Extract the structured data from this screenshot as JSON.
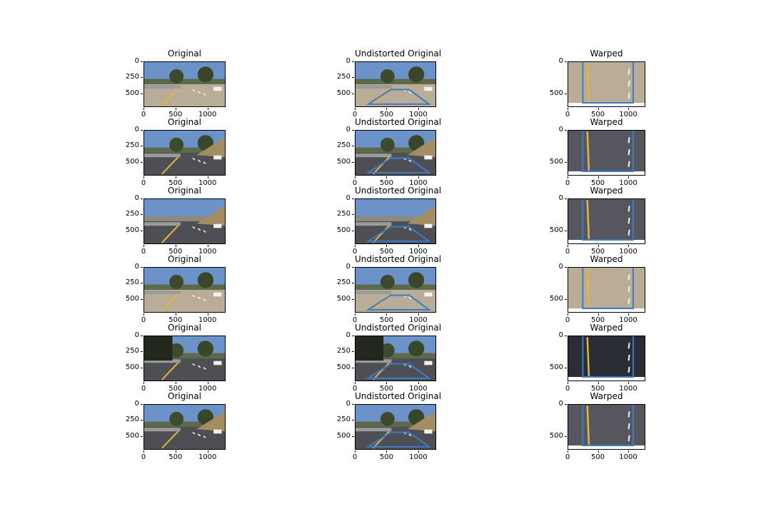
{
  "panels": [
    {
      "title": "Original",
      "kind": "original",
      "variant": "a",
      "yticks": [
        "0",
        "250",
        "500"
      ],
      "xticks": [
        "0",
        "500",
        "1000"
      ]
    },
    {
      "title": "Undistorted Original",
      "kind": "undistorted",
      "variant": "a",
      "yticks": [
        "0",
        "250",
        "500"
      ],
      "xticks": [
        "0",
        "500",
        "1000"
      ]
    },
    {
      "title": "Warped",
      "kind": "warped",
      "variant": "a",
      "yticks": [
        "0",
        "500"
      ],
      "xticks": [
        "0",
        "500",
        "1000"
      ]
    },
    {
      "title": "Original",
      "kind": "original",
      "variant": "b",
      "yticks": [
        "0",
        "250",
        "500"
      ],
      "xticks": [
        "0",
        "500",
        "1000"
      ]
    },
    {
      "title": "Undistorted Original",
      "kind": "undistorted",
      "variant": "b",
      "yticks": [
        "0",
        "250",
        "500"
      ],
      "xticks": [
        "0",
        "500",
        "1000"
      ]
    },
    {
      "title": "Warped",
      "kind": "warped",
      "variant": "b",
      "yticks": [
        "0",
        "500"
      ],
      "xticks": [
        "0",
        "500",
        "1000"
      ]
    },
    {
      "title": "Original",
      "kind": "original",
      "variant": "c",
      "yticks": [
        "0",
        "250",
        "500"
      ],
      "xticks": [
        "0",
        "500",
        "1000"
      ]
    },
    {
      "title": "Undistorted Original",
      "kind": "undistorted",
      "variant": "c",
      "yticks": [
        "0",
        "250",
        "500"
      ],
      "xticks": [
        "0",
        "500",
        "1000"
      ]
    },
    {
      "title": "Warped",
      "kind": "warped",
      "variant": "c",
      "yticks": [
        "0",
        "500"
      ],
      "xticks": [
        "0",
        "500",
        "1000"
      ]
    },
    {
      "title": "Original",
      "kind": "original",
      "variant": "a",
      "yticks": [
        "0",
        "250",
        "500"
      ],
      "xticks": [
        "0",
        "500",
        "1000"
      ]
    },
    {
      "title": "Undistorted Original",
      "kind": "undistorted",
      "variant": "a",
      "yticks": [
        "0",
        "250",
        "500"
      ],
      "xticks": [
        "0",
        "500",
        "1000"
      ]
    },
    {
      "title": "Warped",
      "kind": "warped",
      "variant": "a",
      "yticks": [
        "0",
        "500"
      ],
      "xticks": [
        "0",
        "500",
        "1000"
      ]
    },
    {
      "title": "Original",
      "kind": "original",
      "variant": "d",
      "yticks": [
        "0",
        "250",
        "500"
      ],
      "xticks": [
        "0",
        "500",
        "1000"
      ]
    },
    {
      "title": "Undistorted Original",
      "kind": "undistorted",
      "variant": "d",
      "yticks": [
        "0",
        "250",
        "500"
      ],
      "xticks": [
        "0",
        "500",
        "1000"
      ]
    },
    {
      "title": "Warped",
      "kind": "warped",
      "variant": "d",
      "yticks": [
        "0",
        "500"
      ],
      "xticks": [
        "0",
        "500",
        "1000"
      ]
    },
    {
      "title": "Original",
      "kind": "original",
      "variant": "b",
      "yticks": [
        "0",
        "250",
        "500"
      ],
      "xticks": [
        "0",
        "500",
        "1000"
      ]
    },
    {
      "title": "Undistorted Original",
      "kind": "undistorted",
      "variant": "b",
      "yticks": [
        "0",
        "250",
        "500"
      ],
      "xticks": [
        "0",
        "500",
        "1000"
      ]
    },
    {
      "title": "Warped",
      "kind": "warped",
      "variant": "b",
      "yticks": [
        "0",
        "500"
      ],
      "xticks": [
        "0",
        "500",
        "1000"
      ]
    }
  ],
  "colors": {
    "overlay": "#3b7cc4",
    "lane_yellow": "#e8b43a",
    "sky": "#6b93c9",
    "road": "#4d4f55",
    "dirt": "#b9ad98"
  }
}
